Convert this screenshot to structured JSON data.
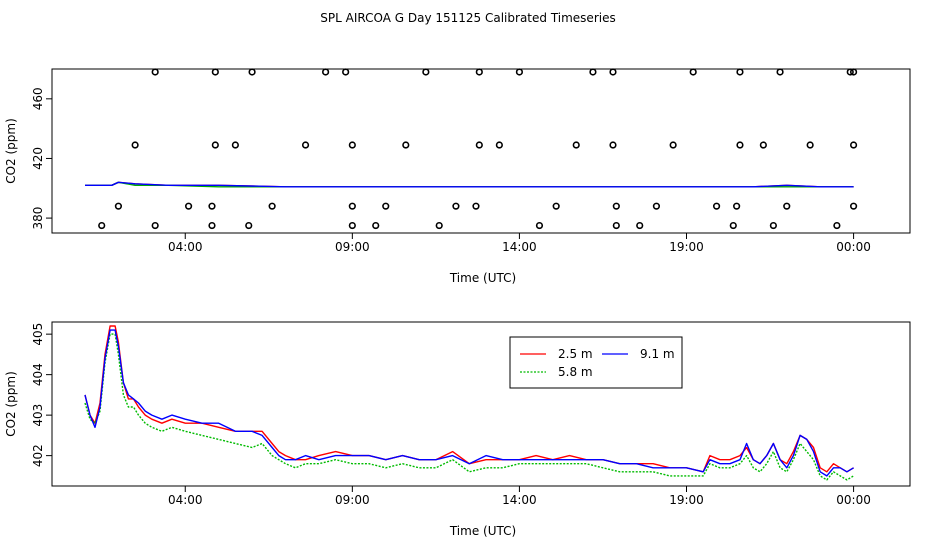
{
  "title": "SPL AIRCOA G  Day 151125  Calibrated Timeseries",
  "chart_data": [
    {
      "type": "scatter",
      "xlabel": "Time (UTC)",
      "ylabel": "CO2 (ppm)",
      "xlim": [
        0,
        24
      ],
      "ylim": [
        370,
        480
      ],
      "x_ticks": [
        {
          "v": 3,
          "label": "04:00"
        },
        {
          "v": 8,
          "label": "09:00"
        },
        {
          "v": 13,
          "label": "14:00"
        },
        {
          "v": 18,
          "label": "19:00"
        },
        {
          "v": 23,
          "label": "00:00"
        }
      ],
      "y_ticks": [
        {
          "v": 380,
          "label": "380"
        },
        {
          "v": 420,
          "label": "420"
        },
        {
          "v": 460,
          "label": "460"
        }
      ],
      "reference_points": [
        [
          0.5,
          375
        ],
        [
          2.1,
          375
        ],
        [
          3.8,
          375
        ],
        [
          4.9,
          375
        ],
        [
          8.0,
          375
        ],
        [
          8.7,
          375
        ],
        [
          10.6,
          375
        ],
        [
          13.6,
          375
        ],
        [
          15.9,
          375
        ],
        [
          16.6,
          375
        ],
        [
          19.4,
          375
        ],
        [
          20.6,
          375
        ],
        [
          22.5,
          375
        ],
        [
          1.0,
          388
        ],
        [
          3.1,
          388
        ],
        [
          3.8,
          388
        ],
        [
          5.6,
          388
        ],
        [
          8.0,
          388
        ],
        [
          9.0,
          388
        ],
        [
          11.1,
          388
        ],
        [
          11.7,
          388
        ],
        [
          14.1,
          388
        ],
        [
          15.9,
          388
        ],
        [
          17.1,
          388
        ],
        [
          18.9,
          388
        ],
        [
          19.5,
          388
        ],
        [
          21.0,
          388
        ],
        [
          23.0,
          388
        ],
        [
          1.5,
          429
        ],
        [
          3.9,
          429
        ],
        [
          4.5,
          429
        ],
        [
          6.6,
          429
        ],
        [
          8.0,
          429
        ],
        [
          9.6,
          429
        ],
        [
          11.8,
          429
        ],
        [
          12.4,
          429
        ],
        [
          14.7,
          429
        ],
        [
          15.8,
          429
        ],
        [
          17.6,
          429
        ],
        [
          19.6,
          429
        ],
        [
          20.3,
          429
        ],
        [
          21.7,
          429
        ],
        [
          23.0,
          429
        ],
        [
          2.1,
          478
        ],
        [
          3.9,
          478
        ],
        [
          5.0,
          478
        ],
        [
          7.2,
          478
        ],
        [
          7.8,
          478
        ],
        [
          10.2,
          478
        ],
        [
          11.8,
          478
        ],
        [
          13.0,
          478
        ],
        [
          15.2,
          478
        ],
        [
          15.8,
          478
        ],
        [
          18.2,
          478
        ],
        [
          19.6,
          478
        ],
        [
          20.8,
          478
        ],
        [
          22.9,
          478
        ],
        [
          23.0,
          478
        ]
      ],
      "line_series": [
        {
          "color": "#ff0000",
          "x": [
            0,
            0.8,
            1.0,
            1.5,
            2.5,
            4,
            6,
            8,
            10,
            12,
            14,
            16,
            18,
            20,
            21,
            22,
            23
          ],
          "y": [
            402,
            402,
            404,
            403,
            402,
            402,
            401,
            401,
            401,
            401,
            401,
            401,
            401,
            401,
            402,
            401,
            401
          ]
        },
        {
          "color": "#00aa00",
          "x": [
            0,
            0.8,
            1.0,
            1.5,
            2.5,
            4,
            6,
            8,
            10,
            12,
            14,
            16,
            18,
            20,
            21,
            22,
            23
          ],
          "y": [
            402,
            402,
            404,
            402,
            402,
            401,
            401,
            401,
            401,
            401,
            401,
            401,
            401,
            401,
            401,
            401,
            401
          ]
        },
        {
          "color": "#0000ff",
          "x": [
            0,
            0.8,
            1.0,
            1.5,
            2.5,
            4,
            6,
            8,
            10,
            12,
            14,
            16,
            18,
            20,
            21,
            22,
            23
          ],
          "y": [
            402,
            402,
            404,
            403,
            402,
            402,
            401,
            401,
            401,
            401,
            401,
            401,
            401,
            401,
            402,
            401,
            401
          ]
        }
      ]
    },
    {
      "type": "line",
      "xlabel": "Time (UTC)",
      "ylabel": "CO2 (ppm)",
      "xlim": [
        0,
        24
      ],
      "ylim": [
        401.25,
        405.3
      ],
      "x_ticks": [
        {
          "v": 3,
          "label": "04:00"
        },
        {
          "v": 8,
          "label": "09:00"
        },
        {
          "v": 13,
          "label": "14:00"
        },
        {
          "v": 18,
          "label": "19:00"
        },
        {
          "v": 23,
          "label": "00:00"
        }
      ],
      "y_ticks": [
        {
          "v": 402,
          "label": "402"
        },
        {
          "v": 403,
          "label": "403"
        },
        {
          "v": 404,
          "label": "404"
        },
        {
          "v": 405,
          "label": "405"
        }
      ],
      "legend_position": "top-right",
      "series": [
        {
          "name": "2.5 m",
          "color": "#ff0000",
          "dash": "",
          "x": [
            0,
            0.15,
            0.3,
            0.45,
            0.6,
            0.75,
            0.9,
            1.0,
            1.15,
            1.3,
            1.45,
            1.6,
            1.8,
            2.0,
            2.3,
            2.6,
            3.0,
            3.5,
            4.0,
            4.5,
            5.0,
            5.3,
            5.6,
            5.8,
            6.0,
            6.3,
            6.6,
            7.0,
            7.5,
            8.0,
            8.5,
            9.0,
            9.5,
            10.0,
            10.5,
            11.0,
            11.5,
            12.0,
            12.5,
            13.0,
            13.5,
            14.0,
            14.5,
            15.0,
            15.5,
            16.0,
            16.5,
            17.0,
            17.5,
            18.0,
            18.5,
            18.7,
            19.0,
            19.3,
            19.6,
            19.8,
            20.0,
            20.2,
            20.4,
            20.6,
            20.8,
            21.0,
            21.2,
            21.4,
            21.6,
            21.8,
            22.0,
            22.2,
            22.4,
            22.6,
            22.8,
            23.0
          ],
          "y": [
            403.5,
            403.0,
            402.8,
            403.3,
            404.5,
            405.2,
            405.2,
            404.8,
            403.8,
            403.4,
            403.4,
            403.2,
            403.0,
            402.9,
            402.8,
            402.9,
            402.8,
            402.8,
            402.7,
            402.6,
            402.6,
            402.6,
            402.3,
            402.1,
            402.0,
            401.9,
            401.9,
            402.0,
            402.1,
            402.0,
            402.0,
            401.9,
            402.0,
            401.9,
            401.9,
            402.1,
            401.8,
            401.9,
            401.9,
            401.9,
            402.0,
            401.9,
            402.0,
            401.9,
            401.9,
            401.8,
            401.8,
            401.8,
            401.7,
            401.7,
            401.6,
            402.0,
            401.9,
            401.9,
            402.0,
            402.2,
            401.9,
            401.8,
            402.0,
            402.3,
            401.9,
            401.8,
            402.1,
            402.5,
            402.4,
            402.2,
            401.7,
            401.6,
            401.8,
            401.7,
            401.6,
            401.7
          ]
        },
        {
          "name": "5.8 m",
          "color": "#00bb00",
          "dash": "2,1.5",
          "x": [
            0,
            0.15,
            0.3,
            0.45,
            0.6,
            0.75,
            0.9,
            1.0,
            1.15,
            1.3,
            1.45,
            1.6,
            1.8,
            2.0,
            2.3,
            2.6,
            3.0,
            3.5,
            4.0,
            4.5,
            5.0,
            5.3,
            5.6,
            5.8,
            6.0,
            6.3,
            6.6,
            7.0,
            7.5,
            8.0,
            8.5,
            9.0,
            9.5,
            10.0,
            10.5,
            11.0,
            11.5,
            12.0,
            12.5,
            13.0,
            13.5,
            14.0,
            14.5,
            15.0,
            15.5,
            16.0,
            16.5,
            17.0,
            17.5,
            18.0,
            18.5,
            18.7,
            19.0,
            19.3,
            19.6,
            19.8,
            20.0,
            20.2,
            20.4,
            20.6,
            20.8,
            21.0,
            21.2,
            21.4,
            21.6,
            21.8,
            22.0,
            22.2,
            22.4,
            22.6,
            22.8,
            23.0
          ],
          "y": [
            403.3,
            402.9,
            402.8,
            403.1,
            404.3,
            405.0,
            405.0,
            404.5,
            403.5,
            403.2,
            403.2,
            403.0,
            402.8,
            402.7,
            402.6,
            402.7,
            402.6,
            402.5,
            402.4,
            402.3,
            402.2,
            402.3,
            402.0,
            401.9,
            401.8,
            401.7,
            401.8,
            401.8,
            401.9,
            401.8,
            401.8,
            401.7,
            401.8,
            401.7,
            401.7,
            401.9,
            401.6,
            401.7,
            401.7,
            401.8,
            401.8,
            401.8,
            401.8,
            401.8,
            401.7,
            401.6,
            401.6,
            401.6,
            401.5,
            401.5,
            401.5,
            401.8,
            401.7,
            401.7,
            401.8,
            402.0,
            401.7,
            401.6,
            401.8,
            402.1,
            401.7,
            401.6,
            401.9,
            402.3,
            402.1,
            401.9,
            401.5,
            401.4,
            401.6,
            401.5,
            401.4,
            401.5
          ]
        },
        {
          "name": "9.1 m",
          "color": "#0000ff",
          "dash": "",
          "x": [
            0,
            0.15,
            0.3,
            0.45,
            0.6,
            0.75,
            0.9,
            1.0,
            1.15,
            1.3,
            1.45,
            1.6,
            1.8,
            2.0,
            2.3,
            2.6,
            3.0,
            3.5,
            4.0,
            4.5,
            5.0,
            5.3,
            5.6,
            5.8,
            6.0,
            6.3,
            6.6,
            7.0,
            7.5,
            8.0,
            8.5,
            9.0,
            9.5,
            10.0,
            10.5,
            11.0,
            11.5,
            12.0,
            12.5,
            13.0,
            13.5,
            14.0,
            14.5,
            15.0,
            15.5,
            16.0,
            16.5,
            17.0,
            17.5,
            18.0,
            18.5,
            18.7,
            19.0,
            19.3,
            19.6,
            19.8,
            20.0,
            20.2,
            20.4,
            20.6,
            20.8,
            21.0,
            21.2,
            21.4,
            21.6,
            21.8,
            22.0,
            22.2,
            22.4,
            22.6,
            22.8,
            23.0
          ],
          "y": [
            403.5,
            403.0,
            402.7,
            403.2,
            404.4,
            405.1,
            405.1,
            404.7,
            403.8,
            403.5,
            403.4,
            403.3,
            403.1,
            403.0,
            402.9,
            403.0,
            402.9,
            402.8,
            402.8,
            402.6,
            402.6,
            402.5,
            402.2,
            402.0,
            401.9,
            401.9,
            402.0,
            401.9,
            402.0,
            402.0,
            402.0,
            401.9,
            402.0,
            401.9,
            401.9,
            402.0,
            401.8,
            402.0,
            401.9,
            401.9,
            401.9,
            401.9,
            401.9,
            401.9,
            401.9,
            401.8,
            401.8,
            401.7,
            401.7,
            401.7,
            401.6,
            401.9,
            401.8,
            401.8,
            401.9,
            402.3,
            401.9,
            401.8,
            402.0,
            402.3,
            401.9,
            401.7,
            402.0,
            402.5,
            402.4,
            402.1,
            401.6,
            401.5,
            401.7,
            401.7,
            401.6,
            401.7
          ]
        }
      ]
    }
  ]
}
